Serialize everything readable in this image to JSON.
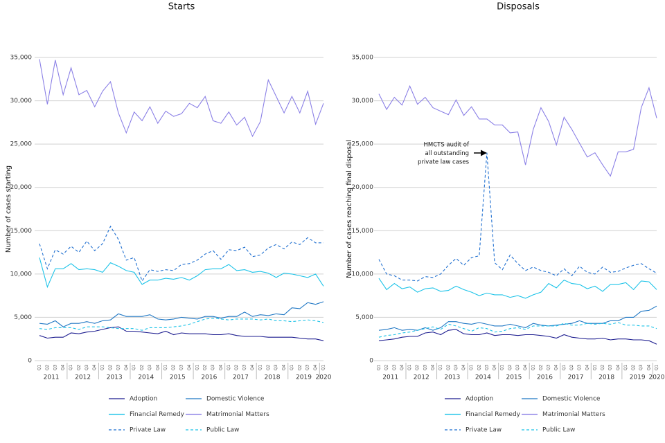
{
  "chart_data": [
    {
      "type": "line",
      "title": "Starts",
      "y_label": "Number of cases starting",
      "categories": [
        "Q1",
        "Q2",
        "Q3",
        "Q4",
        "Q1",
        "Q2",
        "Q3",
        "Q4",
        "Q1",
        "Q2",
        "Q3",
        "Q4",
        "Q1",
        "Q2",
        "Q3",
        "Q4",
        "Q1",
        "Q2",
        "Q3",
        "Q4",
        "Q1",
        "Q2",
        "Q3",
        "Q4",
        "Q1",
        "Q2",
        "Q3",
        "Q4",
        "Q1",
        "Q2",
        "Q3",
        "Q4",
        "Q1",
        "Q2",
        "Q3",
        "Q4",
        "Q1"
      ],
      "years": [
        "2011",
        "2012",
        "2013",
        "2014",
        "2015",
        "2016",
        "2017",
        "2018",
        "2019",
        "2020"
      ],
      "ylim": [
        0,
        35000
      ],
      "yticks": [
        0,
        {
          "value": 5000,
          "label": "5,000"
        },
        {
          "value": 10000,
          "label": "10,000"
        },
        {
          "value": 15000,
          "label": "15,000"
        },
        {
          "value": 20000,
          "label": "20,000"
        },
        {
          "value": 25000,
          "label": "25,000"
        },
        {
          "value": 30000,
          "label": "30,000"
        },
        {
          "value": 35000,
          "label": "35,000"
        }
      ],
      "grid": true,
      "series": [
        {
          "name": "Adoption",
          "color": "#1c1c8f",
          "dashed": false,
          "values": [
            2900,
            2600,
            2700,
            2700,
            3200,
            3100,
            3300,
            3400,
            3600,
            3800,
            3900,
            3400,
            3400,
            3300,
            3200,
            3100,
            3400,
            3000,
            3200,
            3100,
            3100,
            3100,
            3000,
            3000,
            3100,
            2900,
            2800,
            2800,
            2800,
            2700,
            2700,
            2700,
            2700,
            2600,
            2500,
            2500,
            2300
          ]
        },
        {
          "name": "Domestic Violence",
          "color": "#1f77c4",
          "dashed": false,
          "values": [
            4300,
            4200,
            4600,
            3900,
            4300,
            4300,
            4500,
            4300,
            4600,
            4700,
            5400,
            5100,
            5100,
            5100,
            5300,
            4800,
            4700,
            4800,
            5000,
            4900,
            4800,
            5100,
            5100,
            4900,
            5100,
            5100,
            5600,
            5100,
            5300,
            5200,
            5400,
            5300,
            6100,
            6000,
            6700,
            6500,
            6800
          ]
        },
        {
          "name": "Financial Remedy",
          "color": "#1cc3e8",
          "dashed": false,
          "values": [
            11900,
            8500,
            10600,
            10600,
            11200,
            10500,
            10600,
            10500,
            10200,
            11300,
            10900,
            10400,
            10200,
            8800,
            9300,
            9300,
            9500,
            9400,
            9600,
            9300,
            9800,
            10500,
            10600,
            10600,
            11100,
            10400,
            10500,
            10200,
            10300,
            10100,
            9600,
            10100,
            10000,
            9800,
            9600,
            10000,
            8600
          ]
        },
        {
          "name": "Matrimonial Matters",
          "color": "#8b80e6",
          "dashed": false,
          "values": [
            34800,
            29600,
            34700,
            30700,
            33800,
            30700,
            31200,
            29300,
            31100,
            32200,
            28600,
            26300,
            28700,
            27700,
            29300,
            27400,
            28800,
            28200,
            28500,
            29700,
            29200,
            30500,
            27700,
            27400,
            28700,
            27200,
            28100,
            25900,
            27600,
            32400,
            30500,
            28600,
            30500,
            28600,
            31100,
            27300,
            29700
          ]
        },
        {
          "name": "Private Law",
          "color": "#1f6fd0",
          "dashed": true,
          "values": [
            13500,
            10600,
            12800,
            12300,
            13200,
            12500,
            13800,
            12700,
            13500,
            15500,
            14000,
            11600,
            11900,
            9200,
            10500,
            10300,
            10500,
            10400,
            11100,
            11200,
            11600,
            12300,
            12700,
            11700,
            12800,
            12700,
            13100,
            12000,
            12200,
            13000,
            13400,
            12900,
            13700,
            13400,
            14200,
            13600,
            13600
          ]
        },
        {
          "name": "Public Law",
          "color": "#1cc3e8",
          "dashed": true,
          "values": [
            3700,
            3600,
            3800,
            3800,
            3800,
            3600,
            3900,
            3900,
            3900,
            3800,
            3700,
            3700,
            3700,
            3500,
            3800,
            3800,
            3800,
            3900,
            4000,
            4200,
            4500,
            4800,
            4900,
            4800,
            4700,
            4800,
            4800,
            4800,
            4700,
            4800,
            4600,
            4600,
            4500,
            4600,
            4700,
            4600,
            4400
          ]
        }
      ]
    },
    {
      "type": "line",
      "title": "Disposals",
      "y_label": "Number of cases reaching final disposal",
      "categories": [
        "Q1",
        "Q2",
        "Q3",
        "Q4",
        "Q1",
        "Q2",
        "Q3",
        "Q4",
        "Q1",
        "Q2",
        "Q3",
        "Q4",
        "Q1",
        "Q2",
        "Q3",
        "Q4",
        "Q1",
        "Q2",
        "Q3",
        "Q4",
        "Q1",
        "Q2",
        "Q3",
        "Q4",
        "Q1",
        "Q2",
        "Q3",
        "Q4",
        "Q1",
        "Q2",
        "Q3",
        "Q4",
        "Q1",
        "Q2",
        "Q3",
        "Q4",
        "Q1"
      ],
      "years": [
        "2011",
        "2012",
        "2013",
        "2014",
        "2015",
        "2016",
        "2017",
        "2018",
        "2019",
        "2020"
      ],
      "ylim": [
        0,
        35000
      ],
      "yticks": [
        0,
        {
          "value": 5000,
          "label": "5,000"
        },
        {
          "value": 10000,
          "label": "10,000"
        },
        {
          "value": 15000,
          "label": "15,000"
        },
        {
          "value": 20000,
          "label": "20,000"
        },
        {
          "value": 25000,
          "label": "25,000"
        },
        {
          "value": 30000,
          "label": "30,000"
        },
        {
          "value": 35000,
          "label": "35,000"
        }
      ],
      "grid": true,
      "annotation": [
        "HMCTS audit of",
        "all outstanding",
        "private law cases"
      ],
      "series": [
        {
          "name": "Adoption",
          "color": "#1c1c8f",
          "dashed": false,
          "values": [
            2300,
            2400,
            2500,
            2700,
            2800,
            2800,
            3200,
            3300,
            3000,
            3500,
            3600,
            3100,
            3000,
            3000,
            3200,
            2900,
            3000,
            3000,
            2900,
            3000,
            3000,
            2900,
            2800,
            2600,
            3000,
            2700,
            2600,
            2500,
            2500,
            2600,
            2400,
            2500,
            2500,
            2400,
            2400,
            2300,
            1900
          ]
        },
        {
          "name": "Domestic Violence",
          "color": "#1f77c4",
          "dashed": false,
          "values": [
            3500,
            3600,
            3800,
            3500,
            3600,
            3500,
            3800,
            3500,
            3800,
            4500,
            4500,
            4300,
            4200,
            4400,
            4200,
            4000,
            4000,
            4200,
            4000,
            3800,
            4300,
            4100,
            4000,
            4100,
            4200,
            4300,
            4600,
            4300,
            4300,
            4300,
            4600,
            4600,
            5000,
            5000,
            5700,
            5800,
            6300
          ]
        },
        {
          "name": "Financial Remedy",
          "color": "#1cc3e8",
          "dashed": false,
          "values": [
            9500,
            8200,
            8900,
            8300,
            8500,
            7900,
            8300,
            8400,
            8000,
            8100,
            8600,
            8200,
            7900,
            7500,
            7800,
            7600,
            7600,
            7300,
            7500,
            7200,
            7600,
            7900,
            8900,
            8400,
            9300,
            8900,
            8800,
            8300,
            8600,
            8000,
            8800,
            8800,
            9000,
            8200,
            9200,
            9100,
            8200
          ]
        },
        {
          "name": "Matrimonial Matters",
          "color": "#8b80e6",
          "dashed": false,
          "values": [
            30800,
            29000,
            30400,
            29500,
            31700,
            29600,
            30400,
            29200,
            28800,
            28400,
            30100,
            28300,
            29300,
            27900,
            27900,
            27200,
            27200,
            26300,
            26400,
            22600,
            26700,
            29200,
            27600,
            24900,
            28100,
            26700,
            25100,
            23500,
            24000,
            22600,
            21300,
            24100,
            24100,
            24400,
            29200,
            31500,
            28000
          ]
        },
        {
          "name": "Private Law",
          "color": "#1f6fd0",
          "dashed": true,
          "values": [
            11700,
            10000,
            9800,
            9300,
            9300,
            9200,
            9700,
            9600,
            10000,
            11000,
            11800,
            11000,
            11900,
            12100,
            24000,
            11300,
            10500,
            12200,
            11200,
            10400,
            10800,
            10400,
            10200,
            9800,
            10600,
            9800,
            10900,
            10200,
            10000,
            10800,
            10200,
            10300,
            10700,
            11000,
            11200,
            10600,
            10100
          ]
        },
        {
          "name": "Public Law",
          "color": "#1cc3e8",
          "dashed": true,
          "values": [
            2700,
            2900,
            3000,
            3200,
            3300,
            3500,
            3700,
            3900,
            3600,
            4200,
            4000,
            3700,
            3400,
            3800,
            3700,
            3300,
            3400,
            3700,
            3800,
            3600,
            4000,
            4000,
            4000,
            4000,
            4300,
            4100,
            4100,
            4300,
            4200,
            4300,
            4200,
            4400,
            4100,
            4100,
            4000,
            4000,
            3700
          ]
        }
      ]
    }
  ]
}
